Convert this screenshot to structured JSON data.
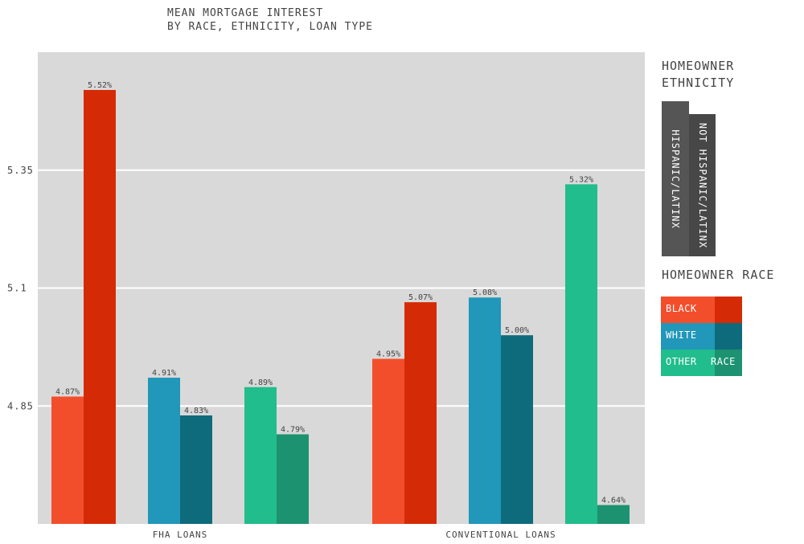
{
  "title_lines": [
    "MEAN MORTGAGE INTEREST",
    "BY RACE, ETHNICITY, LOAN TYPE"
  ],
  "legend": {
    "ethnicity_title_lines": [
      "HOMEOWNER",
      "ETHNICITY"
    ],
    "ethnicity_items": [
      "HISPANIC/LATINX",
      "NOT HISPANIC/LATINX"
    ],
    "race_title": "HOMEOWNER RACE",
    "race_items": [
      {
        "label": "BLACK",
        "color_hispanic": "#F34E2C",
        "color_not": "#D42B06"
      },
      {
        "label": "WHITE",
        "color_hispanic": "#2197B9",
        "color_not": "#0E6B7C"
      },
      {
        "label": "OTHER",
        "label2": "RACE",
        "color_hispanic": "#22BD8C",
        "color_not": "#1C9270"
      }
    ]
  },
  "chart_data": {
    "type": "bar",
    "title": "MEAN MORTGAGE INTEREST BY RACE, ETHNICITY, LOAN TYPE",
    "categories": [
      "FHA LOANS",
      "CONVENTIONAL LOANS"
    ],
    "y_ticks": [
      "4.85",
      "5.1",
      "5.35"
    ],
    "ylim": [
      4.6,
      5.6
    ],
    "grid": true,
    "legend_position": "right",
    "groups": [
      {
        "category": "FHA LOANS",
        "bars": [
          {
            "race": "BLACK",
            "ethnicity": "HISPANIC/LATINX",
            "value": 4.87,
            "label": "4.87%",
            "color": "#F34E2C"
          },
          {
            "race": "BLACK",
            "ethnicity": "NOT HISPANIC/LATINX",
            "value": 5.52,
            "label": "5.52%",
            "color": "#D42B06"
          },
          {
            "race": "WHITE",
            "ethnicity": "HISPANIC/LATINX",
            "value": 4.91,
            "label": "4.91%",
            "color": "#2197B9"
          },
          {
            "race": "WHITE",
            "ethnicity": "NOT HISPANIC/LATINX",
            "value": 4.83,
            "label": "4.83%",
            "color": "#0E6B7C"
          },
          {
            "race": "OTHER RACE",
            "ethnicity": "HISPANIC/LATINX",
            "value": 4.89,
            "label": "4.89%",
            "color": "#22BD8C"
          },
          {
            "race": "OTHER RACE",
            "ethnicity": "NOT HISPANIC/LATINX",
            "value": 4.79,
            "label": "4.79%",
            "color": "#1C9270"
          }
        ]
      },
      {
        "category": "CONVENTIONAL LOANS",
        "bars": [
          {
            "race": "BLACK",
            "ethnicity": "HISPANIC/LATINX",
            "value": 4.95,
            "label": "4.95%",
            "color": "#F34E2C"
          },
          {
            "race": "BLACK",
            "ethnicity": "NOT HISPANIC/LATINX",
            "value": 5.07,
            "label": "5.07%",
            "color": "#D42B06"
          },
          {
            "race": "WHITE",
            "ethnicity": "HISPANIC/LATINX",
            "value": 5.08,
            "label": "5.08%",
            "color": "#2197B9"
          },
          {
            "race": "WHITE",
            "ethnicity": "NOT HISPANIC/LATINX",
            "value": 5.0,
            "label": "5.00%",
            "color": "#0E6B7C"
          },
          {
            "race": "OTHER RACE",
            "ethnicity": "HISPANIC/LATINX",
            "value": 5.32,
            "label": "5.32%",
            "color": "#22BD8C"
          },
          {
            "race": "OTHER RACE",
            "ethnicity": "NOT HISPANIC/LATINX",
            "value": 4.64,
            "label": "4.64%",
            "color": "#1C9270"
          }
        ]
      }
    ]
  }
}
